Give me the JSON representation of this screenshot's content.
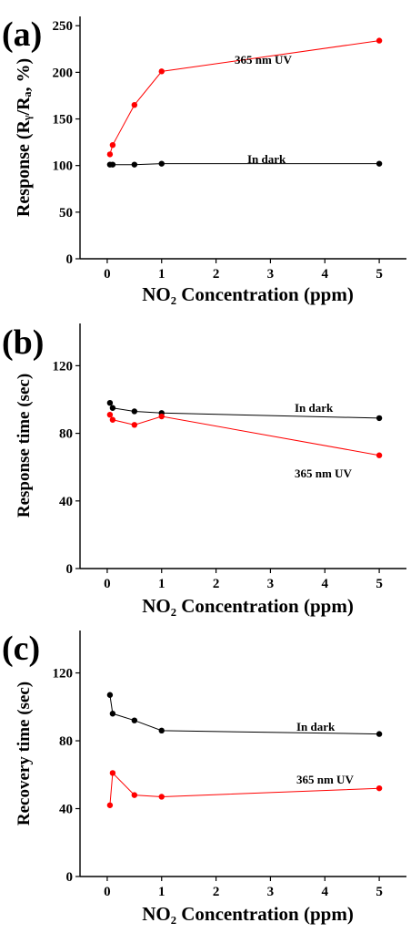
{
  "chart_data": [
    {
      "panel_label": "(a)",
      "type": "line",
      "xlabel": "NO₂ Concentration (ppm)",
      "ylabel": "Response (Rᵧ/Rₐ, %)",
      "xlim": [
        -0.5,
        5.5
      ],
      "ylim": [
        0,
        260
      ],
      "xticks": [
        0,
        1,
        2,
        3,
        4,
        5
      ],
      "yticks": [
        0,
        50,
        100,
        150,
        200,
        250
      ],
      "series": [
        {
          "name": "365 nm UV",
          "color": "#ff0000",
          "x": [
            0.05,
            0.1,
            0.5,
            1,
            5
          ],
          "y": [
            112,
            122,
            165,
            201,
            234
          ]
        },
        {
          "name": "In dark",
          "color": "#000000",
          "x": [
            0.05,
            0.1,
            0.5,
            1,
            5
          ],
          "y": [
            101,
            101,
            101,
            102,
            102
          ]
        }
      ]
    },
    {
      "panel_label": "(b)",
      "type": "line",
      "xlabel": "NO₂ Concentration (ppm)",
      "ylabel": "Response time (sec)",
      "xlim": [
        -0.5,
        5.5
      ],
      "ylim": [
        0,
        145
      ],
      "xticks": [
        0,
        1,
        2,
        3,
        4,
        5
      ],
      "yticks": [
        0,
        40,
        80,
        120
      ],
      "series": [
        {
          "name": "In dark",
          "color": "#000000",
          "x": [
            0.05,
            0.1,
            0.5,
            1,
            5
          ],
          "y": [
            98,
            95,
            93,
            92,
            89
          ]
        },
        {
          "name": "365 nm UV",
          "color": "#ff0000",
          "x": [
            0.05,
            0.1,
            0.5,
            1,
            5
          ],
          "y": [
            91,
            88,
            85,
            90,
            67
          ]
        }
      ]
    },
    {
      "panel_label": "(c)",
      "type": "line",
      "xlabel": "NO₂ Concentration (ppm)",
      "ylabel": "Recovery time (sec)",
      "xlim": [
        -0.5,
        5.5
      ],
      "ylim": [
        0,
        145
      ],
      "xticks": [
        0,
        1,
        2,
        3,
        4,
        5
      ],
      "yticks": [
        0,
        40,
        80,
        120
      ],
      "series": [
        {
          "name": "In dark",
          "color": "#000000",
          "x": [
            0.05,
            0.1,
            0.5,
            1,
            5
          ],
          "y": [
            107,
            96,
            92,
            86,
            84
          ]
        },
        {
          "name": "365 nm UV",
          "color": "#ff0000",
          "x": [
            0.05,
            0.1,
            0.5,
            1,
            5
          ],
          "y": [
            42,
            61,
            48,
            47,
            52
          ]
        }
      ]
    }
  ]
}
